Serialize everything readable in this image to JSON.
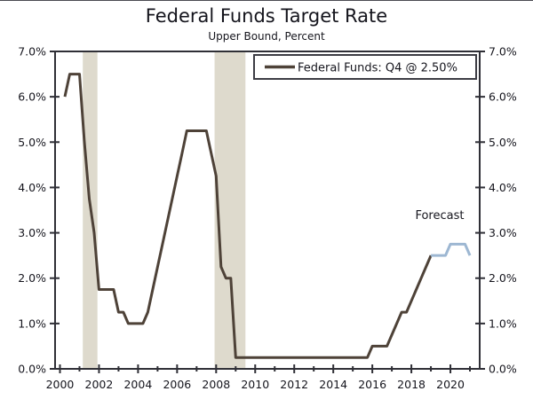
{
  "page": {
    "background": "#ffffff",
    "top_border_color": "#4a4a52"
  },
  "chart_data": {
    "type": "line",
    "title": "Federal Funds Target Rate",
    "subtitle": "Upper Bound, Percent",
    "x_unit": "quarter-end, decimal years",
    "xlim": [
      1999.75,
      2021.5
    ],
    "ylim": [
      0,
      7
    ],
    "y_tick_step": 1,
    "y_tick_format": "one-decimal-percent",
    "y_axis_sides": [
      "left",
      "right"
    ],
    "x_ticks_major": [
      2000,
      2002,
      2004,
      2006,
      2008,
      2010,
      2012,
      2014,
      2016,
      2018,
      2020
    ],
    "x_ticks_minor": [
      2001,
      2003,
      2005,
      2007,
      2009,
      2011,
      2013,
      2015,
      2017,
      2019,
      2021
    ],
    "grid": false,
    "axis_color": "#2f2f36",
    "text_color": "#15151d",
    "recession_bands": {
      "color": "#dedacd",
      "spans": [
        [
          2001.17,
          2001.92
        ],
        [
          2007.92,
          2009.5
        ]
      ]
    },
    "legend": {
      "position": "top-right",
      "border_color": "#3c3c44",
      "fill": "#ffffff",
      "entries": [
        {
          "label": "Federal Funds: Q4 @ 2.50%",
          "color": "#4e4238"
        }
      ]
    },
    "annotations": [
      {
        "text": "Forecast",
        "x": 2019.45,
        "y": 3.3
      }
    ],
    "series": [
      {
        "name": "Federal Funds (actual)",
        "color": "#4e4238",
        "width": 3,
        "points": [
          [
            2000.25,
            6.0
          ],
          [
            2000.5,
            6.5
          ],
          [
            2000.75,
            6.5
          ],
          [
            2001.0,
            6.5
          ],
          [
            2001.25,
            5.0
          ],
          [
            2001.5,
            3.75
          ],
          [
            2001.75,
            3.0
          ],
          [
            2002.0,
            1.75
          ],
          [
            2002.25,
            1.75
          ],
          [
            2002.5,
            1.75
          ],
          [
            2002.75,
            1.75
          ],
          [
            2003.0,
            1.25
          ],
          [
            2003.25,
            1.25
          ],
          [
            2003.5,
            1.0
          ],
          [
            2003.75,
            1.0
          ],
          [
            2004.0,
            1.0
          ],
          [
            2004.25,
            1.0
          ],
          [
            2004.5,
            1.25
          ],
          [
            2004.75,
            1.75
          ],
          [
            2005.0,
            2.25
          ],
          [
            2005.25,
            2.75
          ],
          [
            2005.5,
            3.25
          ],
          [
            2005.75,
            3.75
          ],
          [
            2006.0,
            4.25
          ],
          [
            2006.25,
            4.75
          ],
          [
            2006.5,
            5.25
          ],
          [
            2006.75,
            5.25
          ],
          [
            2007.0,
            5.25
          ],
          [
            2007.25,
            5.25
          ],
          [
            2007.5,
            5.25
          ],
          [
            2007.75,
            4.75
          ],
          [
            2008.0,
            4.25
          ],
          [
            2008.25,
            2.25
          ],
          [
            2008.5,
            2.0
          ],
          [
            2008.75,
            2.0
          ],
          [
            2009.0,
            0.25
          ],
          [
            2009.25,
            0.25
          ],
          [
            2009.5,
            0.25
          ],
          [
            2009.75,
            0.25
          ],
          [
            2010.0,
            0.25
          ],
          [
            2010.25,
            0.25
          ],
          [
            2010.5,
            0.25
          ],
          [
            2010.75,
            0.25
          ],
          [
            2011.0,
            0.25
          ],
          [
            2011.25,
            0.25
          ],
          [
            2011.5,
            0.25
          ],
          [
            2011.75,
            0.25
          ],
          [
            2012.0,
            0.25
          ],
          [
            2012.25,
            0.25
          ],
          [
            2012.5,
            0.25
          ],
          [
            2012.75,
            0.25
          ],
          [
            2013.0,
            0.25
          ],
          [
            2013.25,
            0.25
          ],
          [
            2013.5,
            0.25
          ],
          [
            2013.75,
            0.25
          ],
          [
            2014.0,
            0.25
          ],
          [
            2014.25,
            0.25
          ],
          [
            2014.5,
            0.25
          ],
          [
            2014.75,
            0.25
          ],
          [
            2015.0,
            0.25
          ],
          [
            2015.25,
            0.25
          ],
          [
            2015.5,
            0.25
          ],
          [
            2015.75,
            0.25
          ],
          [
            2016.0,
            0.5
          ],
          [
            2016.25,
            0.5
          ],
          [
            2016.5,
            0.5
          ],
          [
            2016.75,
            0.5
          ],
          [
            2017.0,
            0.75
          ],
          [
            2017.25,
            1.0
          ],
          [
            2017.5,
            1.25
          ],
          [
            2017.75,
            1.25
          ],
          [
            2018.0,
            1.5
          ],
          [
            2018.25,
            1.75
          ],
          [
            2018.5,
            2.0
          ],
          [
            2018.75,
            2.25
          ],
          [
            2019.0,
            2.5
          ]
        ]
      },
      {
        "name": "Forecast",
        "color": "#9db7d2",
        "width": 3,
        "points": [
          [
            2019.0,
            2.5
          ],
          [
            2019.25,
            2.5
          ],
          [
            2019.5,
            2.5
          ],
          [
            2019.75,
            2.5
          ],
          [
            2020.0,
            2.75
          ],
          [
            2020.25,
            2.75
          ],
          [
            2020.5,
            2.75
          ],
          [
            2020.75,
            2.75
          ],
          [
            2021.0,
            2.5
          ]
        ]
      }
    ]
  }
}
